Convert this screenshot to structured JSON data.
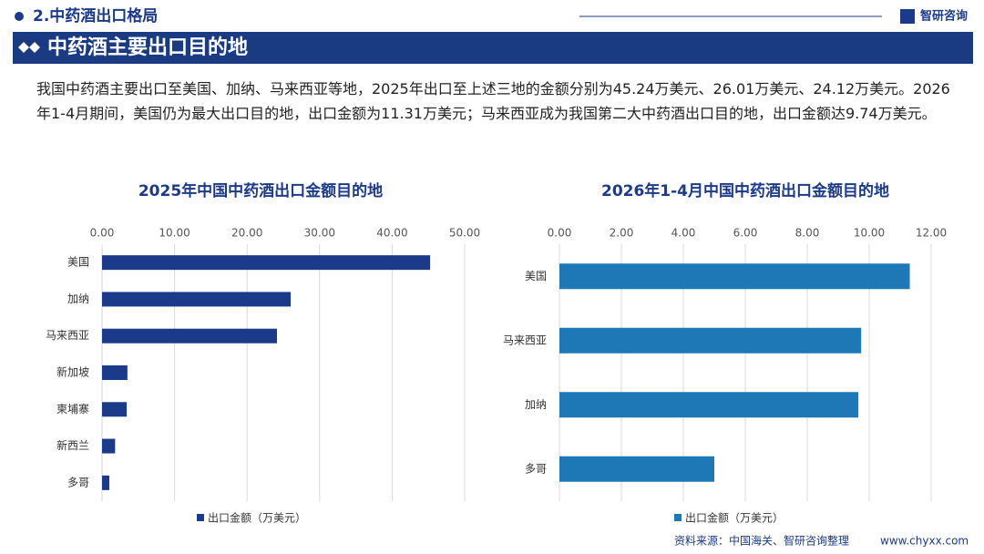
{
  "header": {
    "section": "2.中药酒出口格局",
    "logo": "智研咨询",
    "banner": "中药酒主要出口目的地"
  },
  "intro": "我国中药酒主要出口至美国、加纳、马来西亚等地，2025年出口至上述三地的金额分别为45.24万美元、26.01万美元、24.12万美元。2026年1-4月期间，美国仍为最大出口目的地，出口金额为11.31万美元；马来西亚成为我国第二大中药酒出口目的地，出口金额达9.74万美元。",
  "chart_data": [
    {
      "type": "bar",
      "orientation": "horizontal",
      "title": "2025年中国中药酒出口金额目的地",
      "categories": [
        "美国",
        "加纳",
        "马来西亚",
        "新加坡",
        "柬埔寨",
        "新西兰",
        "多哥"
      ],
      "series": [
        {
          "name": "出口金额（万美元）",
          "color": "#1c3a8a",
          "values": [
            45.24,
            26.01,
            24.12,
            3.5,
            3.4,
            1.8,
            1.0
          ]
        }
      ],
      "xlim": [
        0,
        50
      ],
      "xticks": [
        {
          "value": 0,
          "label": "0.00"
        },
        {
          "value": 10,
          "label": "10.00"
        },
        {
          "value": 20,
          "label": "20.00"
        },
        {
          "value": 30,
          "label": "30.00"
        },
        {
          "value": 40,
          "label": "40.00"
        },
        {
          "value": 50,
          "label": "50.00"
        }
      ],
      "grid": true,
      "legend": "bottom"
    },
    {
      "type": "bar",
      "orientation": "horizontal",
      "title": "2026年1-4月中国中药酒出口金额目的地",
      "categories": [
        "美国",
        "马来西亚",
        "加纳",
        "多哥"
      ],
      "series": [
        {
          "name": "出口金额（万美元）",
          "color": "#1f78b6",
          "values": [
            11.31,
            9.74,
            9.65,
            5.0
          ]
        }
      ],
      "xlim": [
        0,
        12
      ],
      "xticks": [
        {
          "value": 0,
          "label": "0.00"
        },
        {
          "value": 2,
          "label": "2.00"
        },
        {
          "value": 4,
          "label": "4.00"
        },
        {
          "value": 6,
          "label": "6.00"
        },
        {
          "value": 8,
          "label": "8.00"
        },
        {
          "value": 10,
          "label": "10.00"
        },
        {
          "value": 12,
          "label": "12.00"
        }
      ],
      "grid": true,
      "legend": "bottom"
    }
  ],
  "footer": {
    "source": "资料来源：中国海关、智研咨询整理",
    "site": "www.chyxx.com"
  }
}
